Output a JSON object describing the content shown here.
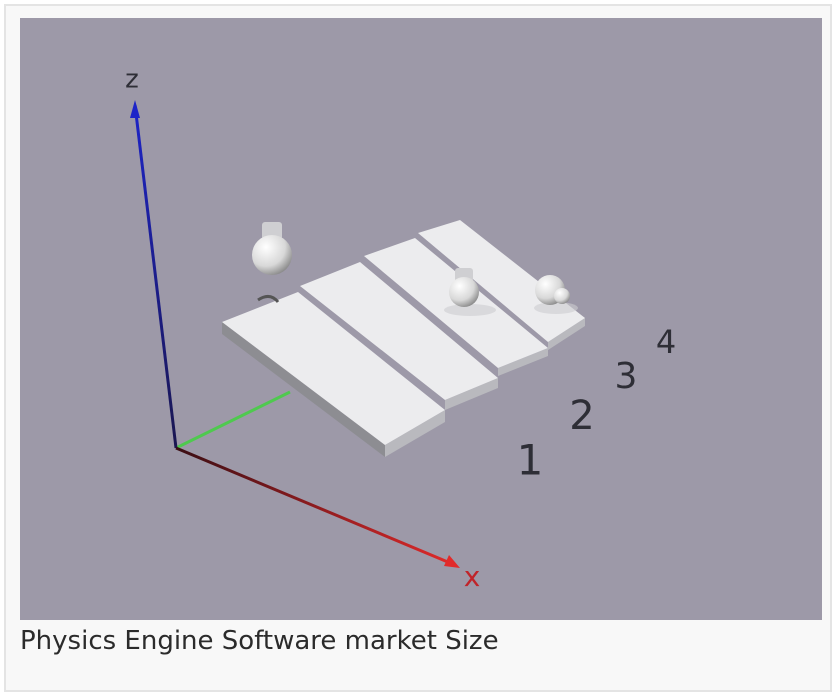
{
  "figure": {
    "image_labels": {
      "z_axis": "z",
      "x_axis": "x",
      "slots": [
        "1",
        "2",
        "3",
        "4"
      ]
    },
    "caption": "Physics Engine Software market Size"
  }
}
